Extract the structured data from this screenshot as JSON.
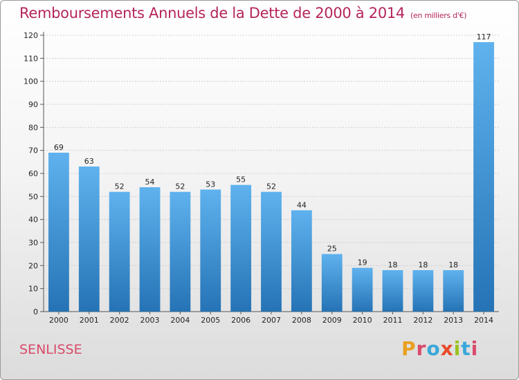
{
  "title": "Remboursements Annuels de la Dette de 2000 à 2014",
  "subtitle": "(en milliers d'€)",
  "city": "SENLISSE",
  "logo": {
    "letters": [
      "P",
      "r",
      "o",
      "x",
      "i",
      "t",
      "i"
    ],
    "colors": [
      "#e8a020",
      "#d94a6a",
      "#39a8dc",
      "#e84a2a",
      "#9bc21c",
      "#39a8dc",
      "#d94a6a"
    ]
  },
  "chart_data": {
    "type": "bar",
    "categories": [
      "2000",
      "2001",
      "2002",
      "2003",
      "2004",
      "2005",
      "2006",
      "2007",
      "2008",
      "2009",
      "2010",
      "2011",
      "2012",
      "2013",
      "2014"
    ],
    "values": [
      69,
      63,
      52,
      54,
      52,
      53,
      55,
      52,
      44,
      25,
      19,
      18,
      18,
      18,
      117
    ],
    "ylim": [
      0,
      120
    ],
    "yticks": [
      0,
      10,
      20,
      30,
      40,
      50,
      60,
      70,
      80,
      90,
      100,
      110,
      120
    ],
    "grid": true,
    "bar_color": "#3d8ed4"
  }
}
